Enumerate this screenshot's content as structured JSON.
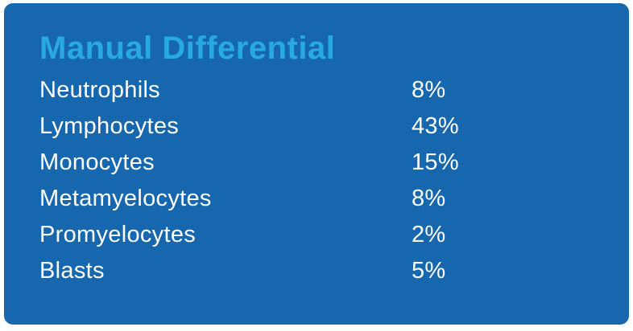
{
  "card": {
    "title": "Manual Differential",
    "rows": [
      {
        "label": "Neutrophils",
        "value": "8%"
      },
      {
        "label": "Lymphocytes",
        "value": "43%"
      },
      {
        "label": "Monocytes",
        "value": "15%"
      },
      {
        "label": "Metamyelocytes",
        "value": "8%"
      },
      {
        "label": "Promyelocytes",
        "value": "2%"
      },
      {
        "label": "Blasts",
        "value": "5%"
      }
    ],
    "colors": {
      "page_background": "#FFFFFF",
      "card_background": "#1767AE",
      "title_text": "#29A9E1",
      "row_text": "#FFFFFF"
    }
  }
}
